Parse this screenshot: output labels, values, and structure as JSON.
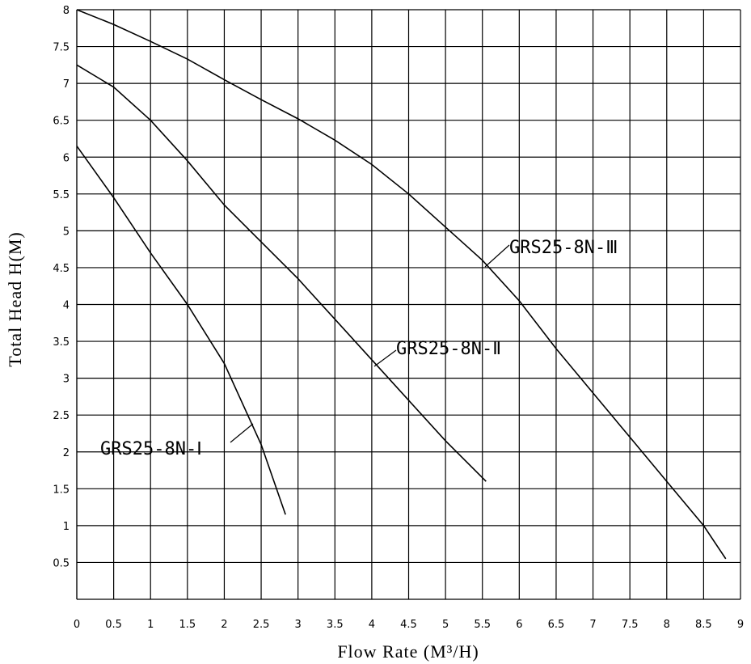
{
  "chart_data": {
    "type": "line",
    "x_label": "Flow Rate (M³/H)",
    "y_label": "Total Head H(M)",
    "xlim": [
      0,
      9
    ],
    "xticks": [
      0,
      0.5,
      1,
      1.5,
      2,
      2.5,
      3,
      3.5,
      4,
      4.5,
      5,
      5.5,
      6,
      6.5,
      7,
      7.5,
      8,
      8.5,
      9
    ],
    "ylim": [
      0,
      8
    ],
    "yticks": [
      0.5,
      1,
      1.5,
      2,
      2.5,
      3,
      3.5,
      4,
      4.5,
      5,
      5.5,
      6,
      6.5,
      7,
      7.5,
      8
    ],
    "grid": true,
    "series": [
      {
        "name": "GRS25-8N-Ⅰ",
        "color": "#000000",
        "x": [
          0,
          0.5,
          1,
          1.5,
          2,
          2.5,
          2.83
        ],
        "values": [
          6.15,
          5.45,
          4.7,
          4.0,
          3.2,
          2.1,
          1.15
        ]
      },
      {
        "name": "GRS25-8N-Ⅱ",
        "color": "#000000",
        "x": [
          0,
          0.5,
          1,
          1.5,
          2,
          2.5,
          3,
          3.5,
          4,
          4.5,
          5,
          5.55
        ],
        "values": [
          7.25,
          6.95,
          6.5,
          5.95,
          5.35,
          4.85,
          4.35,
          3.8,
          3.25,
          2.7,
          2.15,
          1.6
        ]
      },
      {
        "name": "GRS25-8N-Ⅲ",
        "color": "#000000",
        "x": [
          0,
          0.5,
          1,
          1.5,
          2,
          2.5,
          3,
          3.5,
          4,
          4.5,
          5,
          5.5,
          6,
          6.5,
          7,
          7.5,
          8,
          8.5,
          8.8
        ],
        "values": [
          8,
          7.8,
          7.57,
          7.33,
          7.05,
          6.78,
          6.52,
          6.23,
          5.9,
          5.5,
          5.05,
          4.6,
          4.05,
          3.4,
          2.8,
          2.2,
          1.6,
          1.0,
          0.55
        ]
      }
    ]
  }
}
